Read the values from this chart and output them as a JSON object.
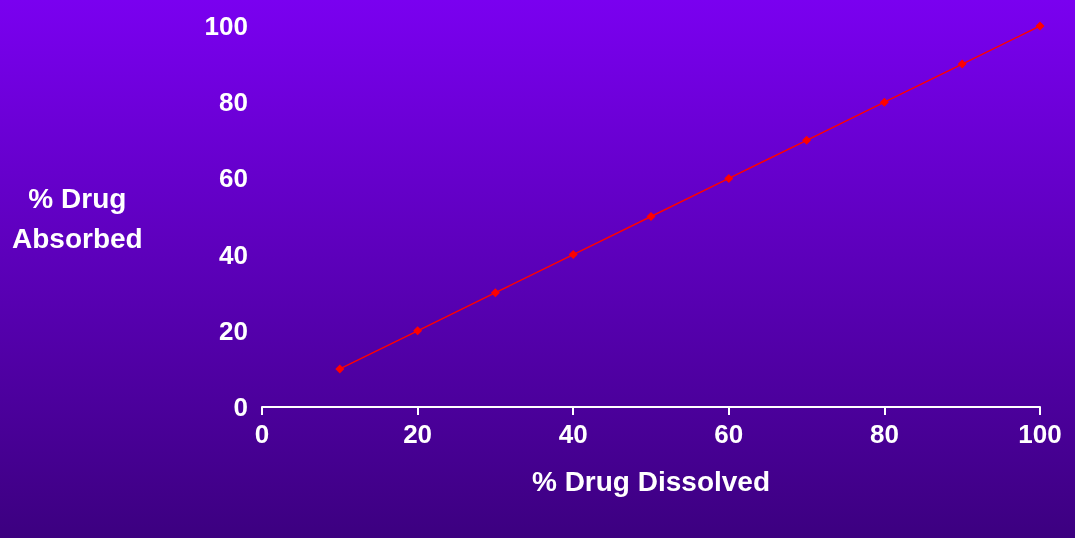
{
  "chart_data": {
    "type": "line",
    "xlabel": "% Drug Dissolved",
    "ylabel": "% Drug\nAbsorbed",
    "x": [
      10,
      20,
      30,
      40,
      50,
      60,
      70,
      80,
      90,
      100
    ],
    "series": [
      {
        "color": "#ff0000",
        "values": [
          10,
          20,
          30,
          40,
          50,
          60,
          70,
          80,
          90,
          100
        ]
      }
    ],
    "xlim": [
      0,
      100
    ],
    "xticks": [
      0,
      20,
      40,
      60,
      80,
      100
    ],
    "ylim": [
      0,
      100
    ],
    "yticks": [
      0,
      20,
      40,
      60,
      80,
      100
    ],
    "grid": false,
    "marker": "diamond",
    "line_style": "solid"
  }
}
